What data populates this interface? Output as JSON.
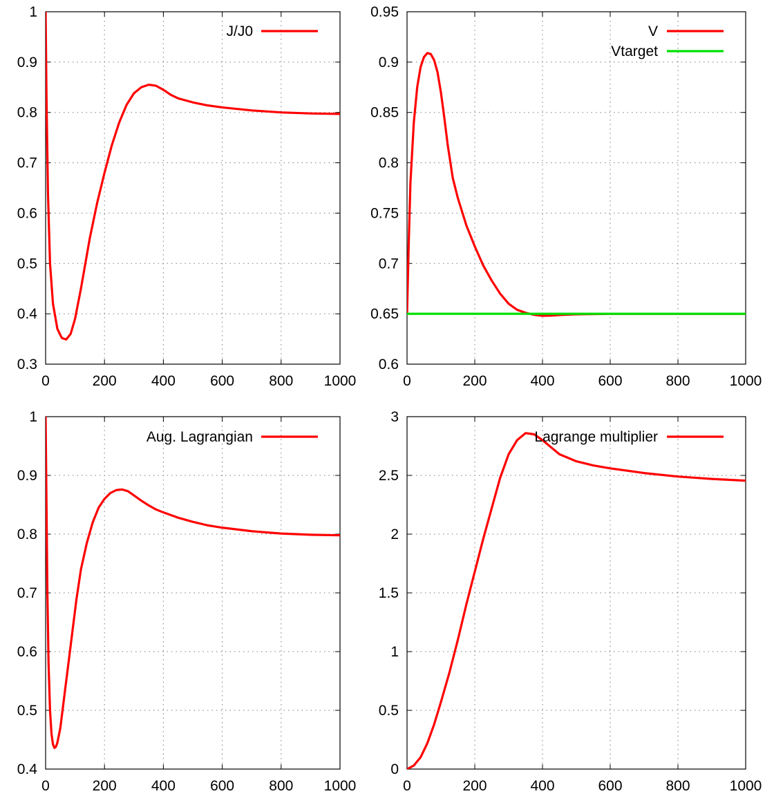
{
  "chart_data": [
    {
      "type": "line",
      "xlim": [
        0,
        1000
      ],
      "ylim": [
        0.3,
        1.0
      ],
      "x_ticks": [
        0,
        200,
        400,
        600,
        800,
        1000
      ],
      "x_tick_labels": [
        "0",
        "200",
        "400",
        "600",
        "800",
        "1000"
      ],
      "y_ticks": [
        0.3,
        0.4,
        0.5,
        0.6,
        0.7,
        0.8,
        0.9,
        1.0
      ],
      "y_tick_labels": [
        "0.3",
        "0.4",
        "0.5",
        "0.6",
        "0.7",
        "0.8",
        "0.9",
        "1"
      ],
      "grid": true,
      "legend_position": "top-right",
      "series": [
        {
          "name": "J/J0",
          "color": "#ff0000",
          "points": [
            [
              0,
              1.0
            ],
            [
              3,
              0.83
            ],
            [
              8,
              0.64
            ],
            [
              15,
              0.5
            ],
            [
              25,
              0.42
            ],
            [
              40,
              0.37
            ],
            [
              55,
              0.352
            ],
            [
              70,
              0.349
            ],
            [
              85,
              0.36
            ],
            [
              100,
              0.39
            ],
            [
              120,
              0.45
            ],
            [
              150,
              0.55
            ],
            [
              175,
              0.62
            ],
            [
              200,
              0.68
            ],
            [
              225,
              0.735
            ],
            [
              250,
              0.78
            ],
            [
              275,
              0.815
            ],
            [
              300,
              0.838
            ],
            [
              325,
              0.85
            ],
            [
              350,
              0.855
            ],
            [
              375,
              0.853
            ],
            [
              400,
              0.845
            ],
            [
              425,
              0.835
            ],
            [
              450,
              0.828
            ],
            [
              500,
              0.82
            ],
            [
              550,
              0.814
            ],
            [
              600,
              0.81
            ],
            [
              700,
              0.804
            ],
            [
              800,
              0.8
            ],
            [
              900,
              0.798
            ],
            [
              1000,
              0.797
            ]
          ]
        }
      ]
    },
    {
      "type": "line",
      "xlim": [
        0,
        1000
      ],
      "ylim": [
        0.6,
        0.95
      ],
      "x_ticks": [
        0,
        200,
        400,
        600,
        800,
        1000
      ],
      "x_tick_labels": [
        "0",
        "200",
        "400",
        "600",
        "800",
        "1000"
      ],
      "y_ticks": [
        0.6,
        0.65,
        0.7,
        0.75,
        0.8,
        0.85,
        0.9,
        0.95
      ],
      "y_tick_labels": [
        "0.6",
        "0.65",
        "0.7",
        "0.75",
        "0.8",
        "0.85",
        "0.9",
        "0.95"
      ],
      "grid": true,
      "legend_position": "top-right",
      "series": [
        {
          "name": "V",
          "color": "#ff0000",
          "points": [
            [
              0,
              0.65
            ],
            [
              5,
              0.72
            ],
            [
              10,
              0.78
            ],
            [
              20,
              0.84
            ],
            [
              30,
              0.875
            ],
            [
              40,
              0.895
            ],
            [
              50,
              0.905
            ],
            [
              60,
              0.909
            ],
            [
              70,
              0.908
            ],
            [
              80,
              0.902
            ],
            [
              90,
              0.89
            ],
            [
              100,
              0.87
            ],
            [
              110,
              0.845
            ],
            [
              120,
              0.818
            ],
            [
              135,
              0.785
            ],
            [
              150,
              0.765
            ],
            [
              175,
              0.738
            ],
            [
              200,
              0.717
            ],
            [
              225,
              0.698
            ],
            [
              250,
              0.683
            ],
            [
              275,
              0.67
            ],
            [
              300,
              0.66
            ],
            [
              325,
              0.654
            ],
            [
              350,
              0.651
            ],
            [
              375,
              0.649
            ],
            [
              400,
              0.648
            ],
            [
              425,
              0.6482
            ],
            [
              450,
              0.6488
            ],
            [
              500,
              0.6495
            ],
            [
              600,
              0.65
            ],
            [
              1000,
              0.65
            ]
          ]
        },
        {
          "name": "Vtarget",
          "color": "#00e000",
          "points": [
            [
              0,
              0.65
            ],
            [
              1000,
              0.65
            ]
          ]
        }
      ]
    },
    {
      "type": "line",
      "xlim": [
        0,
        1000
      ],
      "ylim": [
        0.4,
        1.0
      ],
      "x_ticks": [
        0,
        200,
        400,
        600,
        800,
        1000
      ],
      "x_tick_labels": [
        "0",
        "200",
        "400",
        "600",
        "800",
        "1000"
      ],
      "y_ticks": [
        0.4,
        0.5,
        0.6,
        0.7,
        0.8,
        0.9,
        1.0
      ],
      "y_tick_labels": [
        "0.4",
        "0.5",
        "0.6",
        "0.7",
        "0.8",
        "0.9",
        "1"
      ],
      "grid": true,
      "legend_position": "top-right",
      "series": [
        {
          "name": "Aug. Lagrangian",
          "color": "#ff0000",
          "points": [
            [
              0,
              1.0
            ],
            [
              3,
              0.85
            ],
            [
              6,
              0.7
            ],
            [
              10,
              0.58
            ],
            [
              15,
              0.5
            ],
            [
              20,
              0.46
            ],
            [
              25,
              0.442
            ],
            [
              30,
              0.436
            ],
            [
              35,
              0.438
            ],
            [
              40,
              0.445
            ],
            [
              50,
              0.47
            ],
            [
              60,
              0.51
            ],
            [
              75,
              0.57
            ],
            [
              90,
              0.63
            ],
            [
              105,
              0.69
            ],
            [
              120,
              0.74
            ],
            [
              140,
              0.785
            ],
            [
              160,
              0.82
            ],
            [
              180,
              0.845
            ],
            [
              200,
              0.86
            ],
            [
              220,
              0.87
            ],
            [
              240,
              0.875
            ],
            [
              260,
              0.876
            ],
            [
              280,
              0.873
            ],
            [
              300,
              0.866
            ],
            [
              325,
              0.857
            ],
            [
              350,
              0.849
            ],
            [
              375,
              0.842
            ],
            [
              400,
              0.837
            ],
            [
              450,
              0.828
            ],
            [
              500,
              0.821
            ],
            [
              550,
              0.815
            ],
            [
              600,
              0.811
            ],
            [
              700,
              0.805
            ],
            [
              800,
              0.801
            ],
            [
              900,
              0.799
            ],
            [
              1000,
              0.798
            ]
          ]
        }
      ]
    },
    {
      "type": "line",
      "xlim": [
        0,
        1000
      ],
      "ylim": [
        0,
        3
      ],
      "x_ticks": [
        0,
        200,
        400,
        600,
        800,
        1000
      ],
      "x_tick_labels": [
        "0",
        "200",
        "400",
        "600",
        "800",
        "1000"
      ],
      "y_ticks": [
        0,
        0.5,
        1,
        1.5,
        2,
        2.5,
        3
      ],
      "y_tick_labels": [
        "0",
        "0.5",
        "1",
        "1.5",
        "2",
        "2.5",
        "3"
      ],
      "grid": true,
      "legend_position": "top-right",
      "series": [
        {
          "name": "Lagrange multiplier",
          "color": "#ff0000",
          "points": [
            [
              0,
              0.0
            ],
            [
              20,
              0.03
            ],
            [
              40,
              0.1
            ],
            [
              60,
              0.22
            ],
            [
              80,
              0.38
            ],
            [
              100,
              0.57
            ],
            [
              125,
              0.82
            ],
            [
              150,
              1.1
            ],
            [
              175,
              1.4
            ],
            [
              200,
              1.68
            ],
            [
              225,
              1.96
            ],
            [
              250,
              2.22
            ],
            [
              275,
              2.48
            ],
            [
              300,
              2.68
            ],
            [
              325,
              2.8
            ],
            [
              350,
              2.86
            ],
            [
              375,
              2.85
            ],
            [
              400,
              2.8
            ],
            [
              425,
              2.74
            ],
            [
              450,
              2.68
            ],
            [
              475,
              2.65
            ],
            [
              500,
              2.62
            ],
            [
              550,
              2.585
            ],
            [
              600,
              2.56
            ],
            [
              700,
              2.52
            ],
            [
              800,
              2.49
            ],
            [
              900,
              2.47
            ],
            [
              1000,
              2.455
            ]
          ]
        }
      ]
    }
  ]
}
